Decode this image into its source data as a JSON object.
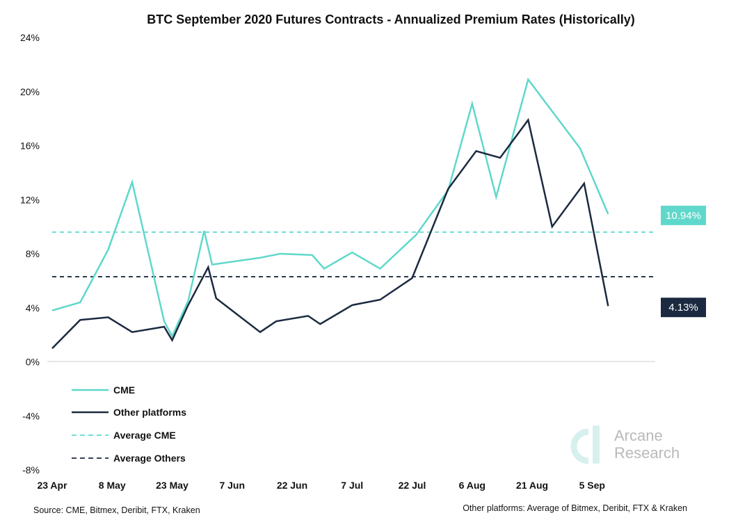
{
  "chart_data": {
    "type": "line",
    "title": "BTC September 2020 Futures Contracts - Annualized Premium Rates (Historically)",
    "yticks": [
      "24%",
      "20%",
      "16%",
      "12%",
      "8%",
      "4%",
      "0%",
      "-4%",
      "-8%"
    ],
    "ylim": [
      -8,
      24
    ],
    "xticks": [
      "23 Apr",
      "8 May",
      "23 May",
      "7 Jun",
      "22 Jun",
      "7 Jul",
      "22 Jul",
      "6 Aug",
      "21 Aug",
      "5 Sep"
    ],
    "x_days_since_23apr_ticks": [
      0,
      15,
      30,
      45,
      60,
      75,
      90,
      105,
      120,
      135
    ],
    "series": [
      {
        "name": "CME",
        "color": "#5fd8cb",
        "style": "solid",
        "points": [
          [
            "2020-04-23",
            3.8
          ],
          [
            "2020-04-30",
            4.4
          ],
          [
            "2020-05-07",
            8.3
          ],
          [
            "2020-05-13",
            13.3
          ],
          [
            "2020-05-21",
            3.0
          ],
          [
            "2020-05-23",
            1.9
          ],
          [
            "2020-05-27",
            4.5
          ],
          [
            "2020-05-31",
            9.7
          ],
          [
            "2020-06-02",
            7.2
          ],
          [
            "2020-06-14",
            7.7
          ],
          [
            "2020-06-19",
            8.0
          ],
          [
            "2020-06-27",
            7.9
          ],
          [
            "2020-06-30",
            6.9
          ],
          [
            "2020-07-07",
            8.1
          ],
          [
            "2020-07-14",
            6.9
          ],
          [
            "2020-07-23",
            9.4
          ],
          [
            "2020-07-31",
            12.7
          ],
          [
            "2020-08-06",
            19.1
          ],
          [
            "2020-08-12",
            12.2
          ],
          [
            "2020-08-20",
            20.9
          ],
          [
            "2020-09-02",
            15.8
          ],
          [
            "2020-09-09",
            10.94
          ]
        ]
      },
      {
        "name": "Other platforms",
        "color": "#1b2a40",
        "style": "solid",
        "points": [
          [
            "2020-04-23",
            1.0
          ],
          [
            "2020-04-30",
            3.1
          ],
          [
            "2020-05-07",
            3.3
          ],
          [
            "2020-05-13",
            2.2
          ],
          [
            "2020-05-21",
            2.6
          ],
          [
            "2020-05-23",
            1.6
          ],
          [
            "2020-05-27",
            4.2
          ],
          [
            "2020-06-01",
            7.0
          ],
          [
            "2020-06-03",
            4.7
          ],
          [
            "2020-06-14",
            2.2
          ],
          [
            "2020-06-18",
            3.0
          ],
          [
            "2020-06-26",
            3.4
          ],
          [
            "2020-06-29",
            2.8
          ],
          [
            "2020-07-07",
            4.2
          ],
          [
            "2020-07-14",
            4.6
          ],
          [
            "2020-07-22",
            6.2
          ],
          [
            "2020-07-31",
            12.8
          ],
          [
            "2020-08-07",
            15.6
          ],
          [
            "2020-08-13",
            15.1
          ],
          [
            "2020-08-20",
            17.9
          ],
          [
            "2020-08-26",
            10.0
          ],
          [
            "2020-09-03",
            13.2
          ],
          [
            "2020-09-09",
            4.13
          ]
        ]
      },
      {
        "name": "Average CME",
        "color": "#5fd8cb",
        "style": "dashed",
        "constant": 9.6
      },
      {
        "name": "Average Others",
        "color": "#1b2a40",
        "style": "dashed",
        "constant": 6.3
      }
    ],
    "end_labels": [
      {
        "series": "CME",
        "text": "10.94%",
        "color": "#5fd8cb"
      },
      {
        "series": "Other platforms",
        "text": "4.13%",
        "color": "#1b2a40"
      }
    ],
    "legend_position": "bottom-left",
    "grid": false
  },
  "watermark": {
    "line1": "Arcane",
    "line2": "Research"
  },
  "footer": {
    "left": "Source: CME, Bitmex, Deribit, FTX, Kraken",
    "right": "Other platforms: Average of Bitmex, Deribit, FTX & Kraken"
  }
}
